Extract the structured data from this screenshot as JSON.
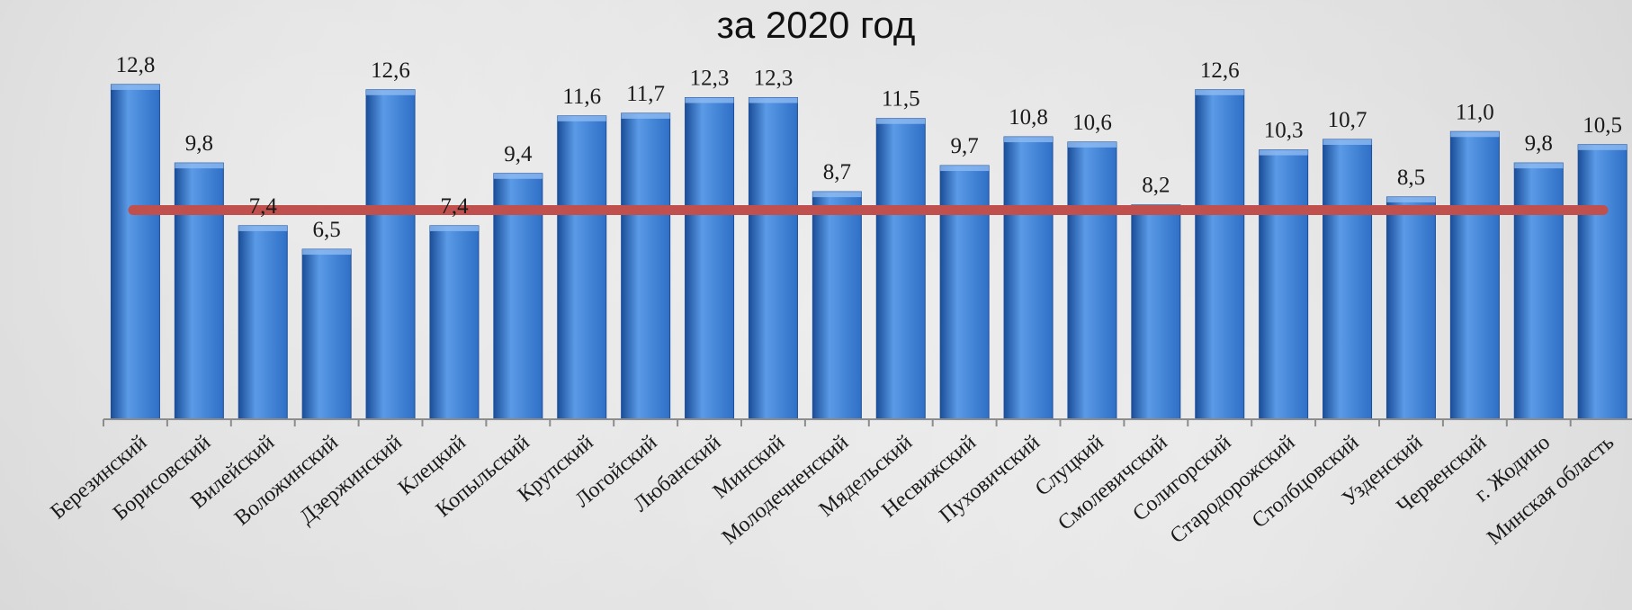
{
  "chart_data": {
    "type": "bar",
    "title": "за 2020 год",
    "categories": [
      "Березинский",
      "Борисовский",
      "Вилейский",
      "Воложинский",
      "Дзержинский",
      "Клецкий",
      "Копыльский",
      "Крупский",
      "Логойский",
      "Любанский",
      "Минский",
      "Молодечненский",
      "Мядельский",
      "Несвижский",
      "Пуховичский",
      "Слуцкий",
      "Смолевичский",
      "Солигорский",
      "Стародорожский",
      "Столбцовский",
      "Узденский",
      "Червенский",
      "г. Жодино",
      "Минская область"
    ],
    "values": [
      12.8,
      9.8,
      7.4,
      6.5,
      12.6,
      7.4,
      9.4,
      11.6,
      11.7,
      12.3,
      12.3,
      8.7,
      11.5,
      9.7,
      10.8,
      10.6,
      8.2,
      12.6,
      10.3,
      10.7,
      8.5,
      11.0,
      9.8,
      10.5
    ],
    "value_labels": [
      "12,8",
      "9,8",
      "7,4",
      "6,5",
      "12,6",
      "7,4",
      "9,4",
      "11,6",
      "11,7",
      "12,3",
      "12,3",
      "8,7",
      "11,5",
      "9,7",
      "10,8",
      "10,6",
      "8,2",
      "12,6",
      "10,3",
      "10,7",
      "8,5",
      "11,0",
      "9,8",
      "10,5"
    ],
    "reference_line": 8.0,
    "ylim": [
      0,
      15
    ],
    "grid": false,
    "colors": {
      "bar": "#2f6fc6",
      "bar_light": "#5a9ae6",
      "bar_dark": "#1b4e99",
      "reference_line": "#c0504d",
      "axis": "#8c8c8c"
    }
  }
}
